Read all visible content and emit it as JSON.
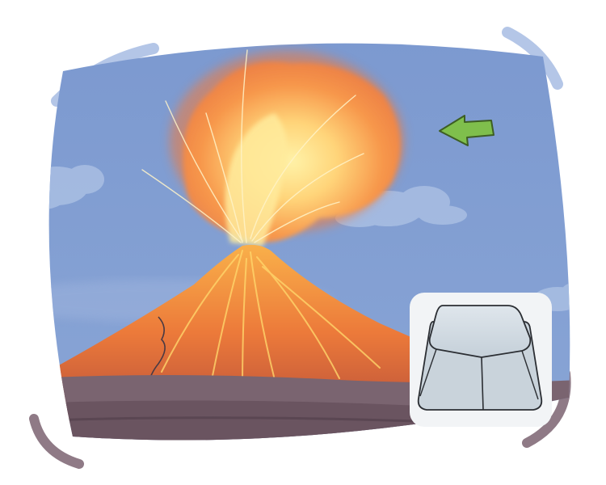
{
  "illustration": {
    "subject": "volcano-eruption",
    "elements": [
      "sky",
      "clouds",
      "eruption-plume",
      "volcano",
      "ground",
      "arrow-icon",
      "keyboard-key-icon"
    ],
    "colors": {
      "sky": "#7f9cd0",
      "cloud": "#a7bde2",
      "plume_outer": "#f27a3a",
      "plume_inner": "#ffd57a",
      "volcano": "#e8683b",
      "ground": "#6a5460",
      "arrow": "#7fbf4c",
      "frame_accent": "#b4c6e7",
      "frame_accent_bottom": "#8f7a86",
      "key_cap": "#c9d3db",
      "key_panel": "#f2f4f6"
    },
    "icons": {
      "arrow": "arrow-left-icon",
      "key": "keyboard-key-icon"
    }
  }
}
